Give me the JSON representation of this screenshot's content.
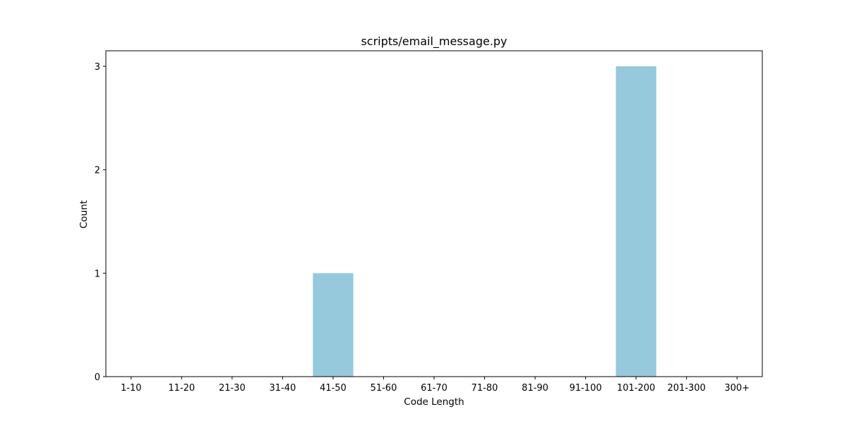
{
  "chart_data": {
    "type": "bar",
    "title": "scripts/email_message.py",
    "xlabel": "Code Length",
    "ylabel": "Count",
    "categories": [
      "1-10",
      "11-20",
      "21-30",
      "31-40",
      "41-50",
      "51-60",
      "61-70",
      "71-80",
      "81-90",
      "91-100",
      "101-200",
      "201-300",
      "300+"
    ],
    "values": [
      0,
      0,
      0,
      0,
      1,
      0,
      0,
      0,
      0,
      0,
      3,
      0,
      0
    ],
    "ylim": [
      0,
      3.15
    ],
    "yticks": [
      0,
      1,
      2,
      3
    ],
    "grid": false,
    "legend": "none",
    "colors": {
      "bar": "#96c9db",
      "axis": "#000000",
      "background": "#ffffff"
    }
  }
}
